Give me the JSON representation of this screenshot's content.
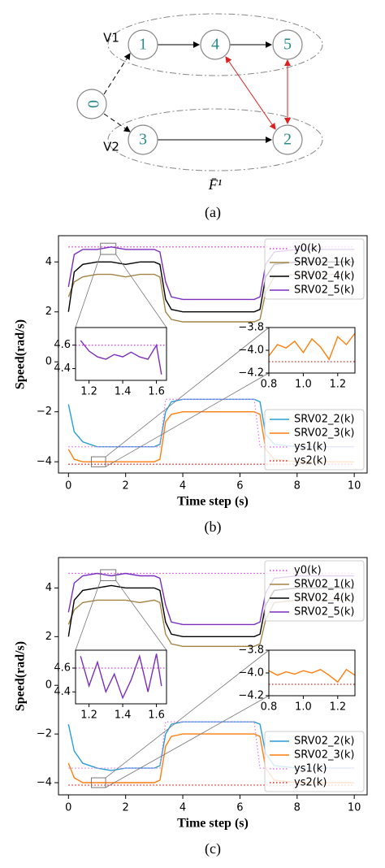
{
  "diagram": {
    "nodes": [
      "0",
      "1",
      "4",
      "5",
      "3",
      "2"
    ],
    "groups": [
      "V1",
      "V2"
    ],
    "label": "F̄¹",
    "caption": "(a)"
  },
  "chart_data": [
    {
      "type": "line",
      "caption": "(b)",
      "xlabel": "Time step (s)",
      "ylabel": "Speed(rad/s)",
      "xlim": [
        -0.35,
        10.45
      ],
      "ylim": [
        -4.45,
        5.05
      ],
      "xticks": [
        0,
        2,
        4,
        6,
        8,
        10
      ],
      "yticks": [
        {
          "value": -4,
          "label": "−4"
        },
        {
          "value": -2,
          "label": "−2"
        },
        0,
        2,
        4
      ],
      "legend_loc": [
        "upper right",
        "lower right"
      ],
      "x": [
        0,
        0.2,
        0.5,
        1,
        1.5,
        2,
        2.5,
        3,
        3.2,
        3.4,
        3.6,
        4,
        5,
        6,
        6.5,
        6.7,
        6.9,
        7.2,
        8,
        9,
        10
      ],
      "series": [
        {
          "name": "y0(k)",
          "color": "#e040e0",
          "dash": "dotted",
          "legend": 0,
          "values": [
            4.6,
            4.6,
            4.6,
            4.6,
            4.6,
            4.6,
            4.6,
            4.6,
            4.6,
            4.6,
            4.6,
            4.6,
            4.6,
            4.6,
            4.6,
            4.6,
            4.6,
            4.6,
            4.6,
            4.6,
            4.6
          ]
        },
        {
          "name": "SRV02_1(k)",
          "color": "#a38445",
          "legend": 0,
          "values": [
            2.6,
            3.2,
            3.4,
            3.5,
            3.5,
            3.4,
            3.5,
            3.5,
            3.4,
            2.0,
            1.7,
            1.6,
            1.6,
            1.6,
            1.6,
            1.7,
            2.8,
            3.4,
            3.5,
            3.5,
            3.5
          ]
        },
        {
          "name": "SRV02_4(k)",
          "color": "#000000",
          "legend": 0,
          "values": [
            2.0,
            3.6,
            3.9,
            4.0,
            4.0,
            3.9,
            4.0,
            4.0,
            3.9,
            2.5,
            2.1,
            2.0,
            2.0,
            2.0,
            2.0,
            2.1,
            3.4,
            3.9,
            4.0,
            4.0,
            4.0
          ]
        },
        {
          "name": "SRV02_5(k)",
          "color": "#7b2fbe",
          "legend": 0,
          "values": [
            3.0,
            4.3,
            4.5,
            4.5,
            4.6,
            4.5,
            4.5,
            4.5,
            4.4,
            3.2,
            2.6,
            2.5,
            2.5,
            2.5,
            2.5,
            2.6,
            3.9,
            4.4,
            4.5,
            4.5,
            4.5
          ]
        },
        {
          "name": "SRV02_2(k)",
          "color": "#2a9fd6",
          "legend": 1,
          "values": [
            -1.7,
            -2.8,
            -3.2,
            -3.4,
            -3.4,
            -3.4,
            -3.4,
            -3.4,
            -3.3,
            -2.0,
            -1.6,
            -1.5,
            -1.5,
            -1.5,
            -1.5,
            -1.6,
            -2.9,
            -3.3,
            -3.4,
            -3.4,
            -3.4
          ]
        },
        {
          "name": "SRV02_3(k)",
          "color": "#ff7f0e",
          "legend": 1,
          "values": [
            -3.5,
            -3.9,
            -4.0,
            -4.0,
            -4.0,
            -4.0,
            -4.0,
            -4.0,
            -3.9,
            -2.4,
            -2.1,
            -2.0,
            -2.0,
            -2.0,
            -2.0,
            -2.1,
            -3.5,
            -3.9,
            -4.0,
            -4.0,
            -4.0
          ]
        },
        {
          "name": "ys1(k)",
          "color": "#e080f0",
          "dash": "dotted",
          "legend": 1,
          "values": [
            -3.4,
            -3.4,
            -3.4,
            -3.4,
            -3.4,
            -3.4,
            -3.4,
            -3.4,
            -3.4,
            -1.5,
            -1.5,
            -1.5,
            -1.5,
            -1.5,
            -1.5,
            -3.4,
            -3.4,
            -3.4,
            -3.4,
            -3.4,
            -3.4
          ]
        },
        {
          "name": "ys2(k)",
          "color": "#e02020",
          "dash": "dotted",
          "legend": 1,
          "values": [
            -4.1,
            -4.1,
            -4.1,
            -4.1,
            -4.1,
            -4.1,
            -4.1,
            -4.1,
            -4.1,
            -4.1,
            -4.1,
            -4.1,
            -4.1,
            -4.1,
            -4.1,
            -4.1,
            -4.1,
            -4.1,
            -4.1,
            -4.1,
            -4.1
          ]
        }
      ],
      "insets": [
        {
          "xlim": [
            1.12,
            1.66
          ],
          "ylim": [
            4.3,
            4.75
          ],
          "xticks": [
            1.2,
            1.4,
            1.6
          ],
          "yticks": [
            4.4,
            4.6
          ],
          "series": [
            {
              "color": "#e040e0",
              "dash": "dotted",
              "x": [
                1.12,
                1.66
              ],
              "values": [
                4.6,
                4.6
              ]
            },
            {
              "color": "#7b2fbe",
              "x": [
                1.15,
                1.2,
                1.25,
                1.3,
                1.35,
                1.4,
                1.45,
                1.5,
                1.55,
                1.6,
                1.63
              ],
              "values": [
                4.64,
                4.55,
                4.5,
                4.48,
                4.52,
                4.5,
                4.54,
                4.5,
                4.48,
                4.6,
                4.35
              ]
            }
          ]
        },
        {
          "xlim": [
            0.8,
            1.3
          ],
          "ylim": [
            -4.2,
            -3.8
          ],
          "xticks": [
            0.8,
            {
              "value": 1.0,
              "label": "1.0"
            },
            1.2
          ],
          "yticks": [
            {
              "value": -3.8,
              "label": "−3.8"
            },
            {
              "value": -4.0,
              "label": "−4.0"
            },
            {
              "value": -4.2,
              "label": "−4.2"
            }
          ],
          "series": [
            {
              "color": "#e02020",
              "dash": "dotted",
              "x": [
                0.8,
                1.3
              ],
              "values": [
                -4.1,
                -4.1
              ]
            },
            {
              "color": "#ff7f0e",
              "x": [
                0.8,
                0.85,
                0.9,
                0.95,
                1.0,
                1.05,
                1.1,
                1.15,
                1.2,
                1.25,
                1.3
              ],
              "values": [
                -4.05,
                -3.95,
                -3.98,
                -3.92,
                -4.02,
                -3.9,
                -3.97,
                -4.08,
                -3.88,
                -3.95,
                -3.85
              ]
            }
          ]
        }
      ]
    },
    {
      "type": "line",
      "caption": "(c)",
      "xlabel": "Time step (s)",
      "ylabel": "Speed(rad/s)",
      "xlim": [
        -0.35,
        10.45
      ],
      "ylim": [
        -4.5,
        5.25
      ],
      "xticks": [
        0,
        2,
        4,
        6,
        8,
        10
      ],
      "yticks": [
        {
          "value": -4,
          "label": "−4"
        },
        {
          "value": -2,
          "label": "−2"
        },
        0,
        2,
        4
      ],
      "legend_loc": [
        "upper right",
        "lower right"
      ],
      "x": [
        0,
        0.2,
        0.5,
        1,
        1.5,
        2,
        2.5,
        3,
        3.2,
        3.4,
        3.6,
        4,
        5,
        6,
        6.5,
        6.7,
        6.9,
        7.2,
        8,
        9,
        10
      ],
      "series": [
        {
          "name": "y0(k)",
          "color": "#e040e0",
          "dash": "dotted",
          "legend": 0,
          "values": [
            4.6,
            4.6,
            4.6,
            4.6,
            4.6,
            4.6,
            4.6,
            4.6,
            4.6,
            4.6,
            4.6,
            4.6,
            4.6,
            4.6,
            4.6,
            4.6,
            4.6,
            4.6,
            4.6,
            4.6,
            4.6
          ]
        },
        {
          "name": "SRV02_1(k)",
          "color": "#a38445",
          "legend": 0,
          "values": [
            2.5,
            3.1,
            3.4,
            3.5,
            3.5,
            3.5,
            3.4,
            3.5,
            3.4,
            2.1,
            1.7,
            1.6,
            1.6,
            1.6,
            1.6,
            1.7,
            2.7,
            3.4,
            3.5,
            3.5,
            3.5
          ]
        },
        {
          "name": "SRV02_4(k)",
          "color": "#000000",
          "legend": 0,
          "values": [
            2.0,
            3.5,
            3.9,
            4.0,
            4.1,
            4.0,
            4.0,
            4.0,
            3.9,
            2.6,
            2.1,
            2.0,
            2.0,
            2.0,
            2.0,
            2.1,
            3.3,
            3.9,
            4.0,
            4.0,
            4.0
          ]
        },
        {
          "name": "SRV02_5(k)",
          "color": "#7b2fbe",
          "legend": 0,
          "values": [
            3.0,
            4.2,
            4.5,
            4.6,
            4.5,
            4.6,
            4.5,
            4.5,
            4.4,
            3.3,
            2.6,
            2.5,
            2.5,
            2.5,
            2.5,
            2.6,
            3.8,
            4.4,
            4.5,
            4.5,
            4.5
          ]
        },
        {
          "name": "SRV02_2(k)",
          "color": "#2a9fd6",
          "legend": 1,
          "values": [
            -1.6,
            -2.7,
            -3.2,
            -3.4,
            -3.5,
            -3.4,
            -3.4,
            -3.4,
            -3.3,
            -2.0,
            -1.6,
            -1.5,
            -1.5,
            -1.5,
            -1.5,
            -1.6,
            -2.8,
            -3.3,
            -3.4,
            -3.4,
            -3.4
          ]
        },
        {
          "name": "SRV02_3(k)",
          "color": "#ff7f0e",
          "legend": 1,
          "values": [
            -3.2,
            -3.8,
            -4.0,
            -4.0,
            -4.0,
            -4.0,
            -4.0,
            -4.0,
            -3.9,
            -2.5,
            -2.1,
            -2.0,
            -2.0,
            -2.0,
            -2.0,
            -2.1,
            -3.4,
            -3.9,
            -4.0,
            -4.0,
            -4.0
          ]
        },
        {
          "name": "ys1(k)",
          "color": "#e080f0",
          "dash": "dotted",
          "legend": 1,
          "values": [
            -3.4,
            -3.4,
            -3.4,
            -3.4,
            -3.4,
            -3.4,
            -3.4,
            -3.4,
            -3.4,
            -1.5,
            -1.5,
            -1.5,
            -1.5,
            -1.5,
            -1.5,
            -3.4,
            -3.4,
            -3.4,
            -3.4,
            -3.4,
            -3.4
          ]
        },
        {
          "name": "ys2(k)",
          "color": "#e02020",
          "dash": "dotted",
          "legend": 1,
          "values": [
            -4.1,
            -4.1,
            -4.1,
            -4.1,
            -4.1,
            -4.1,
            -4.1,
            -4.1,
            -4.1,
            -4.1,
            -4.1,
            -4.1,
            -4.1,
            -4.1,
            -4.1,
            -4.1,
            -4.1,
            -4.1,
            -4.1,
            -4.1,
            -4.1
          ]
        }
      ],
      "insets": [
        {
          "xlim": [
            1.12,
            1.66
          ],
          "ylim": [
            4.3,
            4.75
          ],
          "xticks": [
            1.2,
            1.4,
            1.6
          ],
          "yticks": [
            4.4,
            4.6
          ],
          "series": [
            {
              "color": "#e040e0",
              "dash": "dotted",
              "x": [
                1.12,
                1.66
              ],
              "values": [
                4.6,
                4.6
              ]
            },
            {
              "color": "#7b2fbe",
              "x": [
                1.15,
                1.2,
                1.25,
                1.3,
                1.35,
                1.4,
                1.45,
                1.5,
                1.55,
                1.6,
                1.63
              ],
              "values": [
                4.7,
                4.45,
                4.65,
                4.4,
                4.55,
                4.35,
                4.5,
                4.7,
                4.4,
                4.72,
                4.45
              ]
            }
          ]
        },
        {
          "xlim": [
            0.8,
            1.3
          ],
          "ylim": [
            -4.2,
            -3.8
          ],
          "xticks": [
            0.8,
            {
              "value": 1.0,
              "label": "1.0"
            },
            1.2
          ],
          "yticks": [
            {
              "value": -3.8,
              "label": "−3.8"
            },
            {
              "value": -4.0,
              "label": "−4.0"
            },
            {
              "value": -4.2,
              "label": "−4.2"
            }
          ],
          "series": [
            {
              "color": "#e02020",
              "dash": "dotted",
              "x": [
                0.8,
                1.3
              ],
              "values": [
                -4.1,
                -4.1
              ]
            },
            {
              "color": "#ff7f0e",
              "x": [
                0.8,
                0.85,
                0.9,
                0.95,
                1.0,
                1.05,
                1.1,
                1.15,
                1.2,
                1.25,
                1.3
              ],
              "values": [
                -3.98,
                -4.02,
                -3.99,
                -4.01,
                -3.98,
                -4.0,
                -3.97,
                -4.02,
                -4.08,
                -3.97,
                -4.02
              ]
            }
          ]
        }
      ]
    }
  ]
}
